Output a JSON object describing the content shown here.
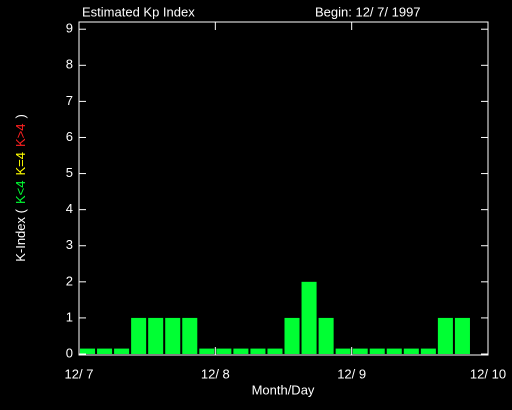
{
  "chart_data": {
    "type": "bar",
    "title": "Estimated Kp Index",
    "subtitle": "Begin: 12/ 7/ 1997",
    "x_label": "Month/Day",
    "y_label_parts": [
      {
        "text": "K-Index (",
        "color": "#ffffff"
      },
      {
        "text": "K<4",
        "color": "#00ff33"
      },
      {
        "text": "K=4",
        "color": "#ffff00"
      },
      {
        "text": "K>4",
        "color": "#ff2020"
      },
      {
        "text": ")",
        "color": "#ffffff"
      }
    ],
    "x": [
      0,
      1,
      2,
      3,
      4,
      5,
      6,
      7,
      8,
      9,
      10,
      11,
      12,
      13,
      14,
      15,
      16,
      17,
      18,
      19,
      20,
      21,
      22
    ],
    "values": [
      0.15,
      0.15,
      0.15,
      1,
      1,
      1,
      1,
      0.15,
      0.15,
      0.15,
      0.15,
      0.15,
      1,
      2,
      1,
      0.15,
      0.15,
      0.15,
      0.15,
      0.15,
      0.15,
      1,
      1
    ],
    "color": "#00ff33",
    "xlim": [
      0,
      24
    ],
    "xticks": [
      {
        "value": 0,
        "label": "12/ 7"
      },
      {
        "value": 8,
        "label": "12/ 8"
      },
      {
        "value": 16,
        "label": "12/ 9"
      },
      {
        "value": 24,
        "label": "12/ 10"
      }
    ],
    "ylim": [
      0,
      9.2
    ],
    "yticks": [
      0,
      1,
      2,
      3,
      4,
      5,
      6,
      7,
      8,
      9
    ]
  }
}
